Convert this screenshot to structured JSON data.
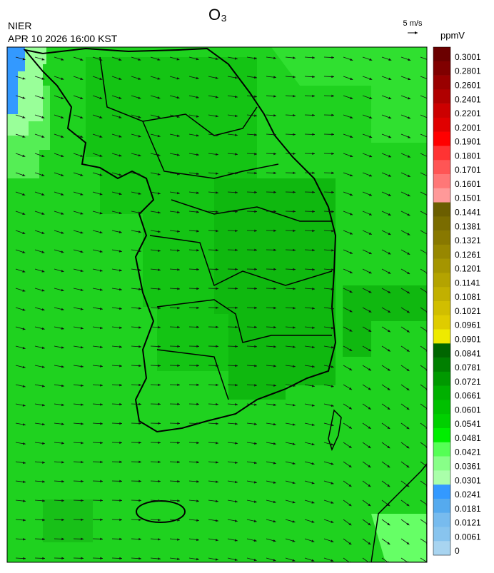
{
  "header": {
    "title": "O₃",
    "agency": "NIER",
    "datetime": "APR 10 2026 16:00 KST",
    "wind_scale": "5 m/s"
  },
  "colorbar": {
    "unit": "ppmV",
    "levels": [
      0.3001,
      0.2801,
      0.2601,
      0.2401,
      0.2201,
      0.2001,
      0.1901,
      0.1801,
      0.1701,
      0.1601,
      0.1501,
      0.1441,
      0.1381,
      0.1321,
      0.1261,
      0.1201,
      0.1141,
      0.1081,
      0.1021,
      0.0961,
      0.0901,
      0.0841,
      0.0781,
      0.0721,
      0.0661,
      0.0601,
      0.0541,
      0.0481,
      0.0421,
      0.0361,
      0.0301,
      0.0241,
      0.0181,
      0.0121,
      0.0061,
      0
    ],
    "colors": [
      "#6b0000",
      "#800000",
      "#990000",
      "#b00000",
      "#cc0000",
      "#e00000",
      "#ff0000",
      "#ff3333",
      "#ff5555",
      "#ff7777",
      "#ff9999",
      "#6b5e00",
      "#7a6c00",
      "#887800",
      "#978700",
      "#a59500",
      "#b4a300",
      "#c2b000",
      "#d1be00",
      "#dfcc00",
      "#eeea00",
      "#006600",
      "#007f00",
      "#009900",
      "#00b000",
      "#00c000",
      "#00d000",
      "#00ee00",
      "#55ff55",
      "#88ff88",
      "#aaffaa",
      "#3399ff",
      "#55aaee",
      "#77bbee",
      "#88c4ee",
      "#a8d4f0"
    ]
  }
}
